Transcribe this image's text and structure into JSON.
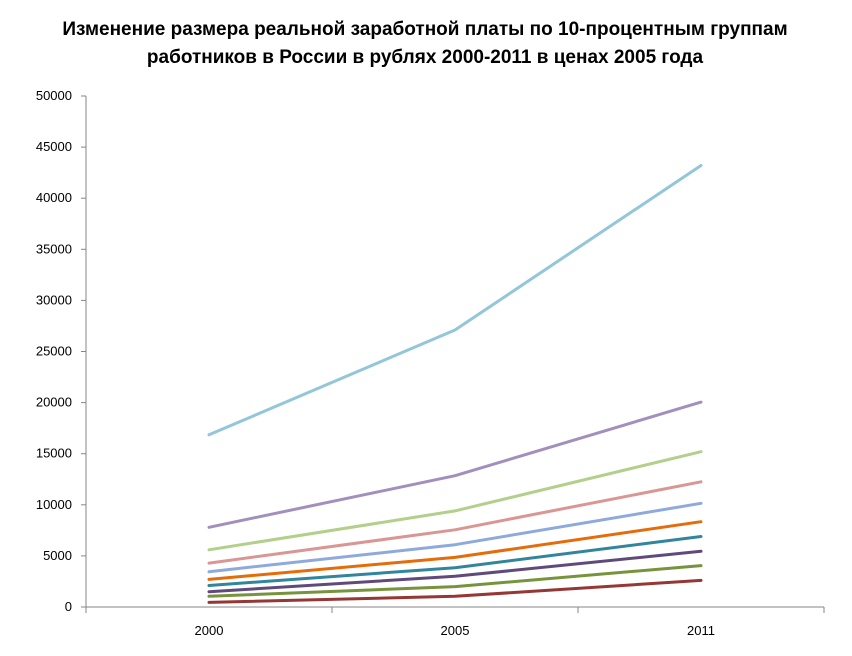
{
  "chart_data": {
    "type": "line",
    "title": "Изменение размера реальной заработной платы по 10-процентным группам работников в России в рублях 2000-2011 в ценах 2005 года",
    "xlabel": "",
    "ylabel": "",
    "categories": [
      "2000",
      "2005",
      "2011"
    ],
    "ylim": [
      0,
      50000
    ],
    "yticks": [
      0,
      5000,
      10000,
      15000,
      20000,
      25000,
      30000,
      35000,
      40000,
      45000,
      50000
    ],
    "grid": false,
    "legend": "none",
    "series": [
      {
        "color": "#953735",
        "values": [
          450,
          1050,
          2600
        ]
      },
      {
        "color": "#77933C",
        "values": [
          1050,
          2000,
          4050
        ]
      },
      {
        "color": "#604A7B",
        "values": [
          1500,
          3000,
          5450
        ]
      },
      {
        "color": "#31859C",
        "values": [
          2100,
          3850,
          6900
        ]
      },
      {
        "color": "#E46C0A",
        "values": [
          2700,
          4850,
          8350
        ]
      },
      {
        "color": "#8EA9DB",
        "values": [
          3450,
          6100,
          10150
        ]
      },
      {
        "color": "#DA9694",
        "values": [
          4300,
          7550,
          12250
        ]
      },
      {
        "color": "#B3CF8A",
        "values": [
          5600,
          9400,
          15200
        ]
      },
      {
        "color": "#A28FBE",
        "values": [
          7800,
          12850,
          20050
        ]
      },
      {
        "color": "#93C6D8",
        "values": [
          16850,
          27100,
          43200
        ]
      }
    ]
  }
}
